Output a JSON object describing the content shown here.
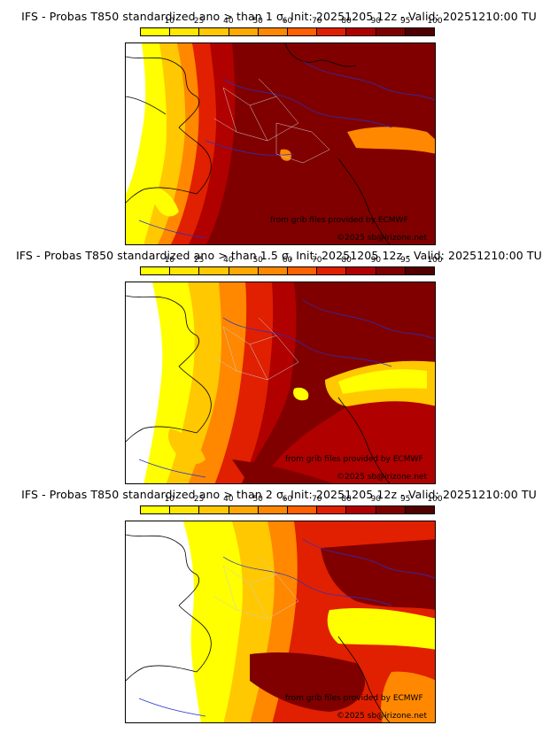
{
  "colorbar": {
    "ticks": [
      "10",
      "25",
      "40",
      "50",
      "60",
      "70",
      "80",
      "90",
      "95",
      "100"
    ],
    "colors": [
      "#ffff00",
      "#ffe600",
      "#ffc800",
      "#ffa800",
      "#ff8800",
      "#ff6000",
      "#e02000",
      "#b00000",
      "#800000",
      "#500000"
    ]
  },
  "panels": [
    {
      "title": "IFS - Probas T850  standardized ano > than 1 σ, Init: 20251205 12z - Valid: 20251210:00 TU",
      "credit_source": "from grib files provided by ECMWF",
      "credit_copyright": "©2025 sb@irizone.net"
    },
    {
      "title": "IFS - Probas T850  standardized ano > than 1.5 σ, Init: 20251205 12z - Valid: 20251210:00 TU",
      "credit_source": "from grib files provided by ECMWF",
      "credit_copyright": "©2025 sb@irizone.net"
    },
    {
      "title": "IFS - Probas T850  standardized ano > than 2 σ, Init: 20251205 12z - Valid: 20251210:00 TU",
      "credit_source": "from grib files provided by ECMWF",
      "credit_copyright": "©2025 sb@irizone.net"
    }
  ]
}
